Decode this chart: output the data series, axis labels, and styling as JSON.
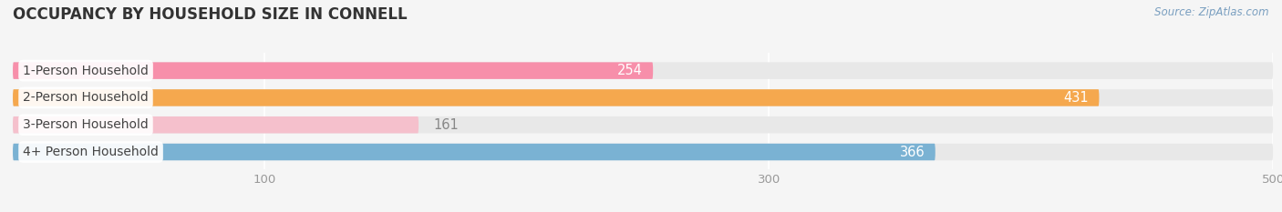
{
  "title": "OCCUPANCY BY HOUSEHOLD SIZE IN CONNELL",
  "source": "Source: ZipAtlas.com",
  "categories": [
    "1-Person Household",
    "2-Person Household",
    "3-Person Household",
    "4+ Person Household"
  ],
  "values": [
    254,
    431,
    161,
    366
  ],
  "bar_colors": [
    "#f78faa",
    "#f5a84e",
    "#f5c0cc",
    "#7ab2d3"
  ],
  "value_label_colors": [
    "#888888",
    "#ffffff",
    "#888888",
    "#ffffff"
  ],
  "xlim": [
    0,
    500
  ],
  "xticks": [
    100,
    300,
    500
  ],
  "background_color": "#f5f5f5",
  "bar_background_color": "#e8e8e8",
  "title_fontsize": 12,
  "bar_height": 0.62,
  "bar_label_fontsize": 10,
  "value_fontsize": 10.5
}
